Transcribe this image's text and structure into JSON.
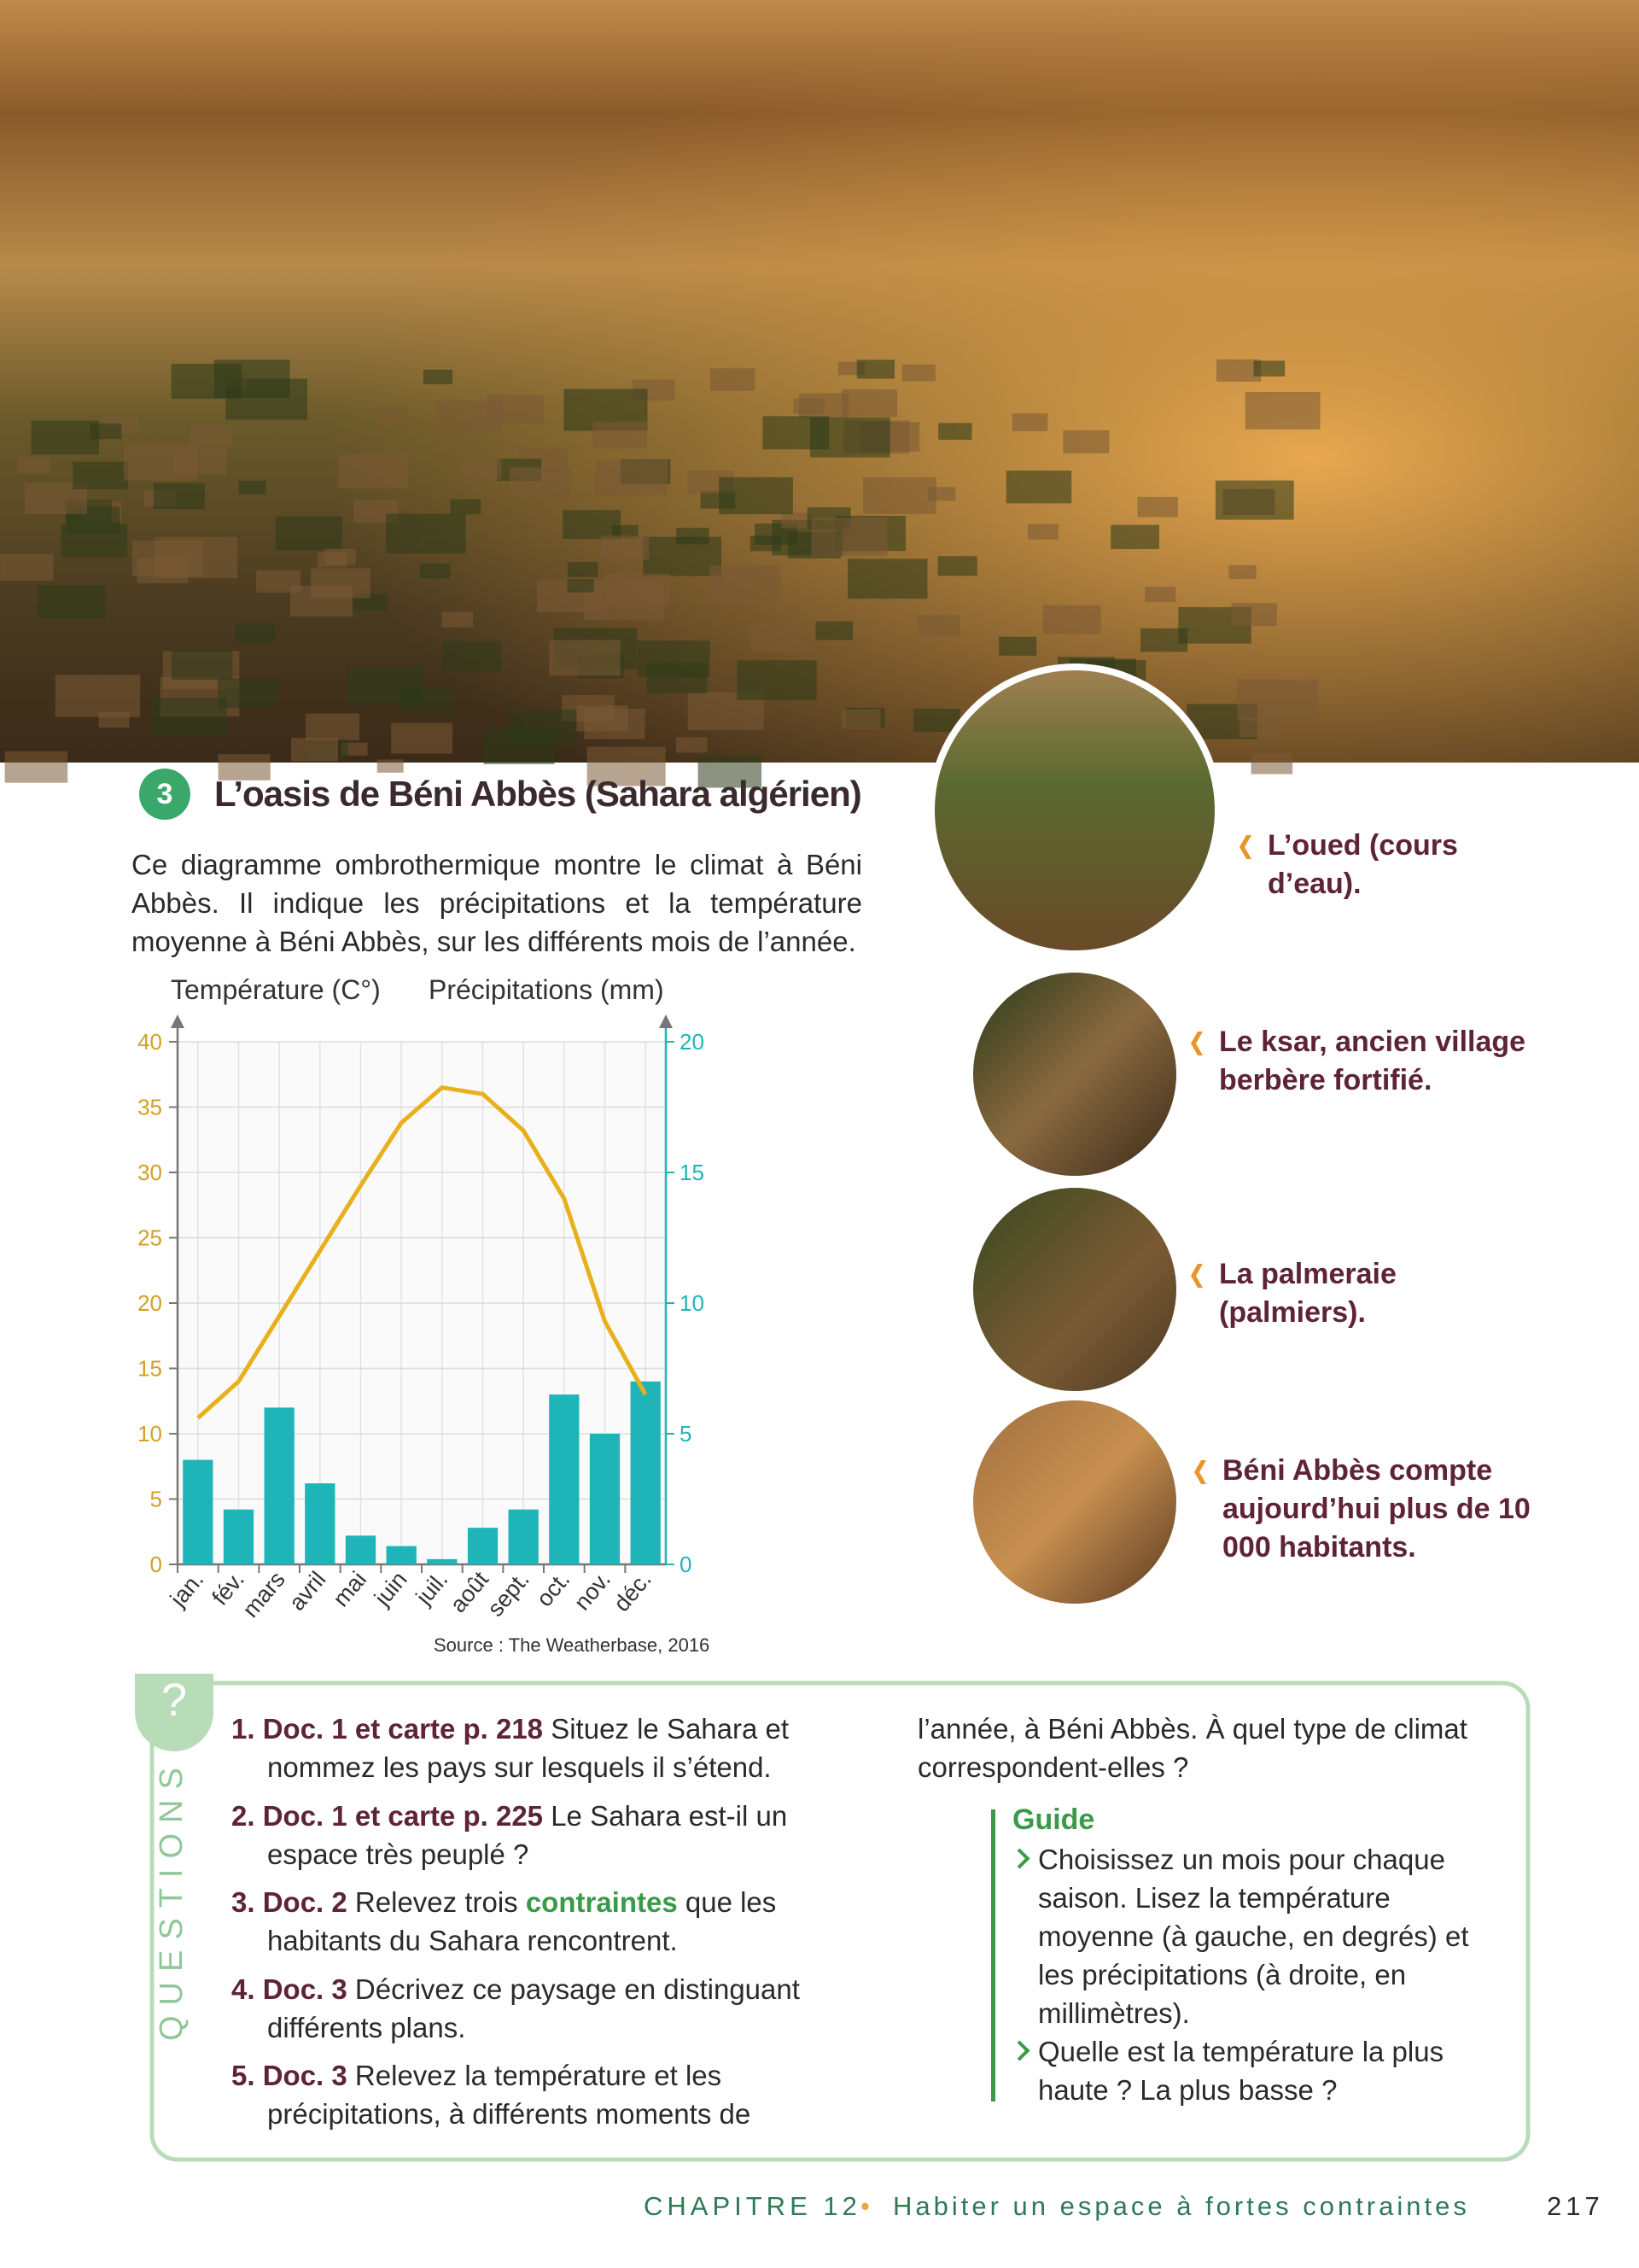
{
  "doc_number": "3",
  "title": "L’oasis de Béni Abbès (Sahara algérien)",
  "intro": "Ce diagramme ombrothermique montre le climat à Béni Abbès. Il indique les précipitations et la température moyenne à Béni Abbès, sur les différents mois de l’année.",
  "chart_data": {
    "type": "combo",
    "ylabel": "Température (C°)",
    "y2label": "Précipitations (mm)",
    "source": "Source : The Weatherbase, 2016",
    "categories": [
      "jan.",
      "fév.",
      "mars",
      "avril",
      "mai",
      "juin",
      "juil.",
      "août",
      "sept.",
      "oct.",
      "nov.",
      "déc."
    ],
    "series": [
      {
        "name": "Précipitations (mm)",
        "type": "bar",
        "axis": "y2",
        "color": "#1fb5b8",
        "values": [
          4.0,
          2.1,
          6.0,
          3.1,
          1.1,
          0.7,
          0.2,
          1.4,
          2.1,
          6.5,
          5.0,
          7.0
        ]
      },
      {
        "name": "Température (C°)",
        "type": "line",
        "color": "#e8b01c",
        "values": [
          11.2,
          14.0,
          19.0,
          24.0,
          29.0,
          33.8,
          36.5,
          36.0,
          33.2,
          28.0,
          18.6,
          13.0
        ]
      }
    ],
    "ylim": [
      0,
      40
    ],
    "yticks": [
      0,
      5,
      10,
      15,
      20,
      25,
      30,
      35,
      40
    ],
    "y2lim": [
      0,
      20
    ],
    "y2ticks": [
      0,
      5,
      10,
      15,
      20
    ],
    "grid": true
  },
  "photo_captions": [
    "L’oued (cours d’eau).",
    "Le ksar, ancien village berbère fortifié.",
    "La palmeraie (palmiers).",
    "Béni Abbès compte aujourd’hui plus de 10 000 habitants."
  ],
  "questions": {
    "badge": "?",
    "label": "QUESTIONS",
    "items": [
      {
        "number": "1.",
        "ref": "Doc. 1 et carte p. 218",
        "text": "Situez le Sahara et nommez les pays sur lesquels il s’étend."
      },
      {
        "number": "2.",
        "ref": "Doc. 1 et carte p. 225",
        "text": "Le Sahara est-il un espace très peuplé ?"
      },
      {
        "number": "3.",
        "ref": "Doc. 2",
        "text": "Relevez trois",
        "term": "contraintes",
        "text_after": "que les habitants du Sahara rencontrent."
      },
      {
        "number": "4.",
        "ref": "Doc. 3",
        "text": "Décrivez ce paysage en distinguant différents plans."
      },
      {
        "number": "5.",
        "ref": "Doc. 3",
        "text": "Relevez la température et les précipitations, à différents moments de",
        "text_continued": "l’année, à Béni Abbès. À quel type de climat correspondent-elles ?"
      }
    ],
    "guide": {
      "title": "Guide",
      "items": [
        "Choisissez un mois pour chaque saison. Lisez la température moyenne (à gauche, en degrés) et les précipitations (à droite, en millimètres).",
        "Quelle est la température la plus haute ? La plus basse ?"
      ]
    }
  },
  "footer": {
    "chapter": "CHAPITRE 12",
    "separator": "•",
    "title": "Habiter un espace à fortes contraintes",
    "page": "217"
  }
}
